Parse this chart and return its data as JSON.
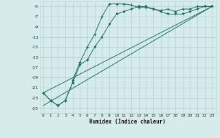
{
  "title": "",
  "xlabel": "Humidex (Indice chaleur)",
  "background_color": "#d5ecea",
  "grid_color": "#b8d5d3",
  "line_color": "#1e6b5e",
  "xlim": [
    -0.5,
    23.5
  ],
  "ylim": [
    -26,
    -4
  ],
  "yticks": [
    -5,
    -7,
    -9,
    -11,
    -13,
    -15,
    -17,
    -19,
    -21,
    -23,
    -25
  ],
  "xticks": [
    0,
    1,
    2,
    3,
    4,
    5,
    6,
    7,
    8,
    9,
    10,
    11,
    12,
    13,
    14,
    15,
    16,
    17,
    18,
    19,
    20,
    21,
    22,
    23
  ],
  "curve1_x": [
    0,
    1,
    2,
    3,
    4,
    4,
    5,
    6,
    7,
    8,
    9,
    10,
    11,
    12,
    13,
    14,
    15,
    16,
    17,
    18,
    19,
    20,
    21,
    22,
    23
  ],
  "curve1_y": [
    -22,
    -23.5,
    -24.5,
    -23.5,
    -20,
    -19.5,
    -16,
    -13,
    -10.5,
    -7,
    -4.5,
    -4.5,
    -4.5,
    -4.7,
    -5.2,
    -5.2,
    -5.5,
    -5.8,
    -5.5,
    -6,
    -5.5,
    -5.5,
    -5,
    -5,
    -5
  ],
  "curve2_x": [
    0,
    1,
    2,
    3,
    4,
    5,
    6,
    7,
    8,
    9,
    10,
    11,
    12,
    13,
    14,
    15,
    16,
    17,
    18,
    19,
    20,
    21,
    22,
    23
  ],
  "curve2_y": [
    -22,
    -23.5,
    -24.5,
    -23.5,
    -20,
    -16.5,
    -15.5,
    -13,
    -11,
    -8.5,
    -6.5,
    -6,
    -5.5,
    -5,
    -5,
    -5.5,
    -6,
    -6.5,
    -6.5,
    -6.5,
    -6,
    -5.5,
    -5,
    -5
  ],
  "line1_x": [
    0,
    23
  ],
  "line1_y": [
    -22,
    -5
  ],
  "line2_x": [
    0,
    23
  ],
  "line2_y": [
    -24.5,
    -5
  ]
}
